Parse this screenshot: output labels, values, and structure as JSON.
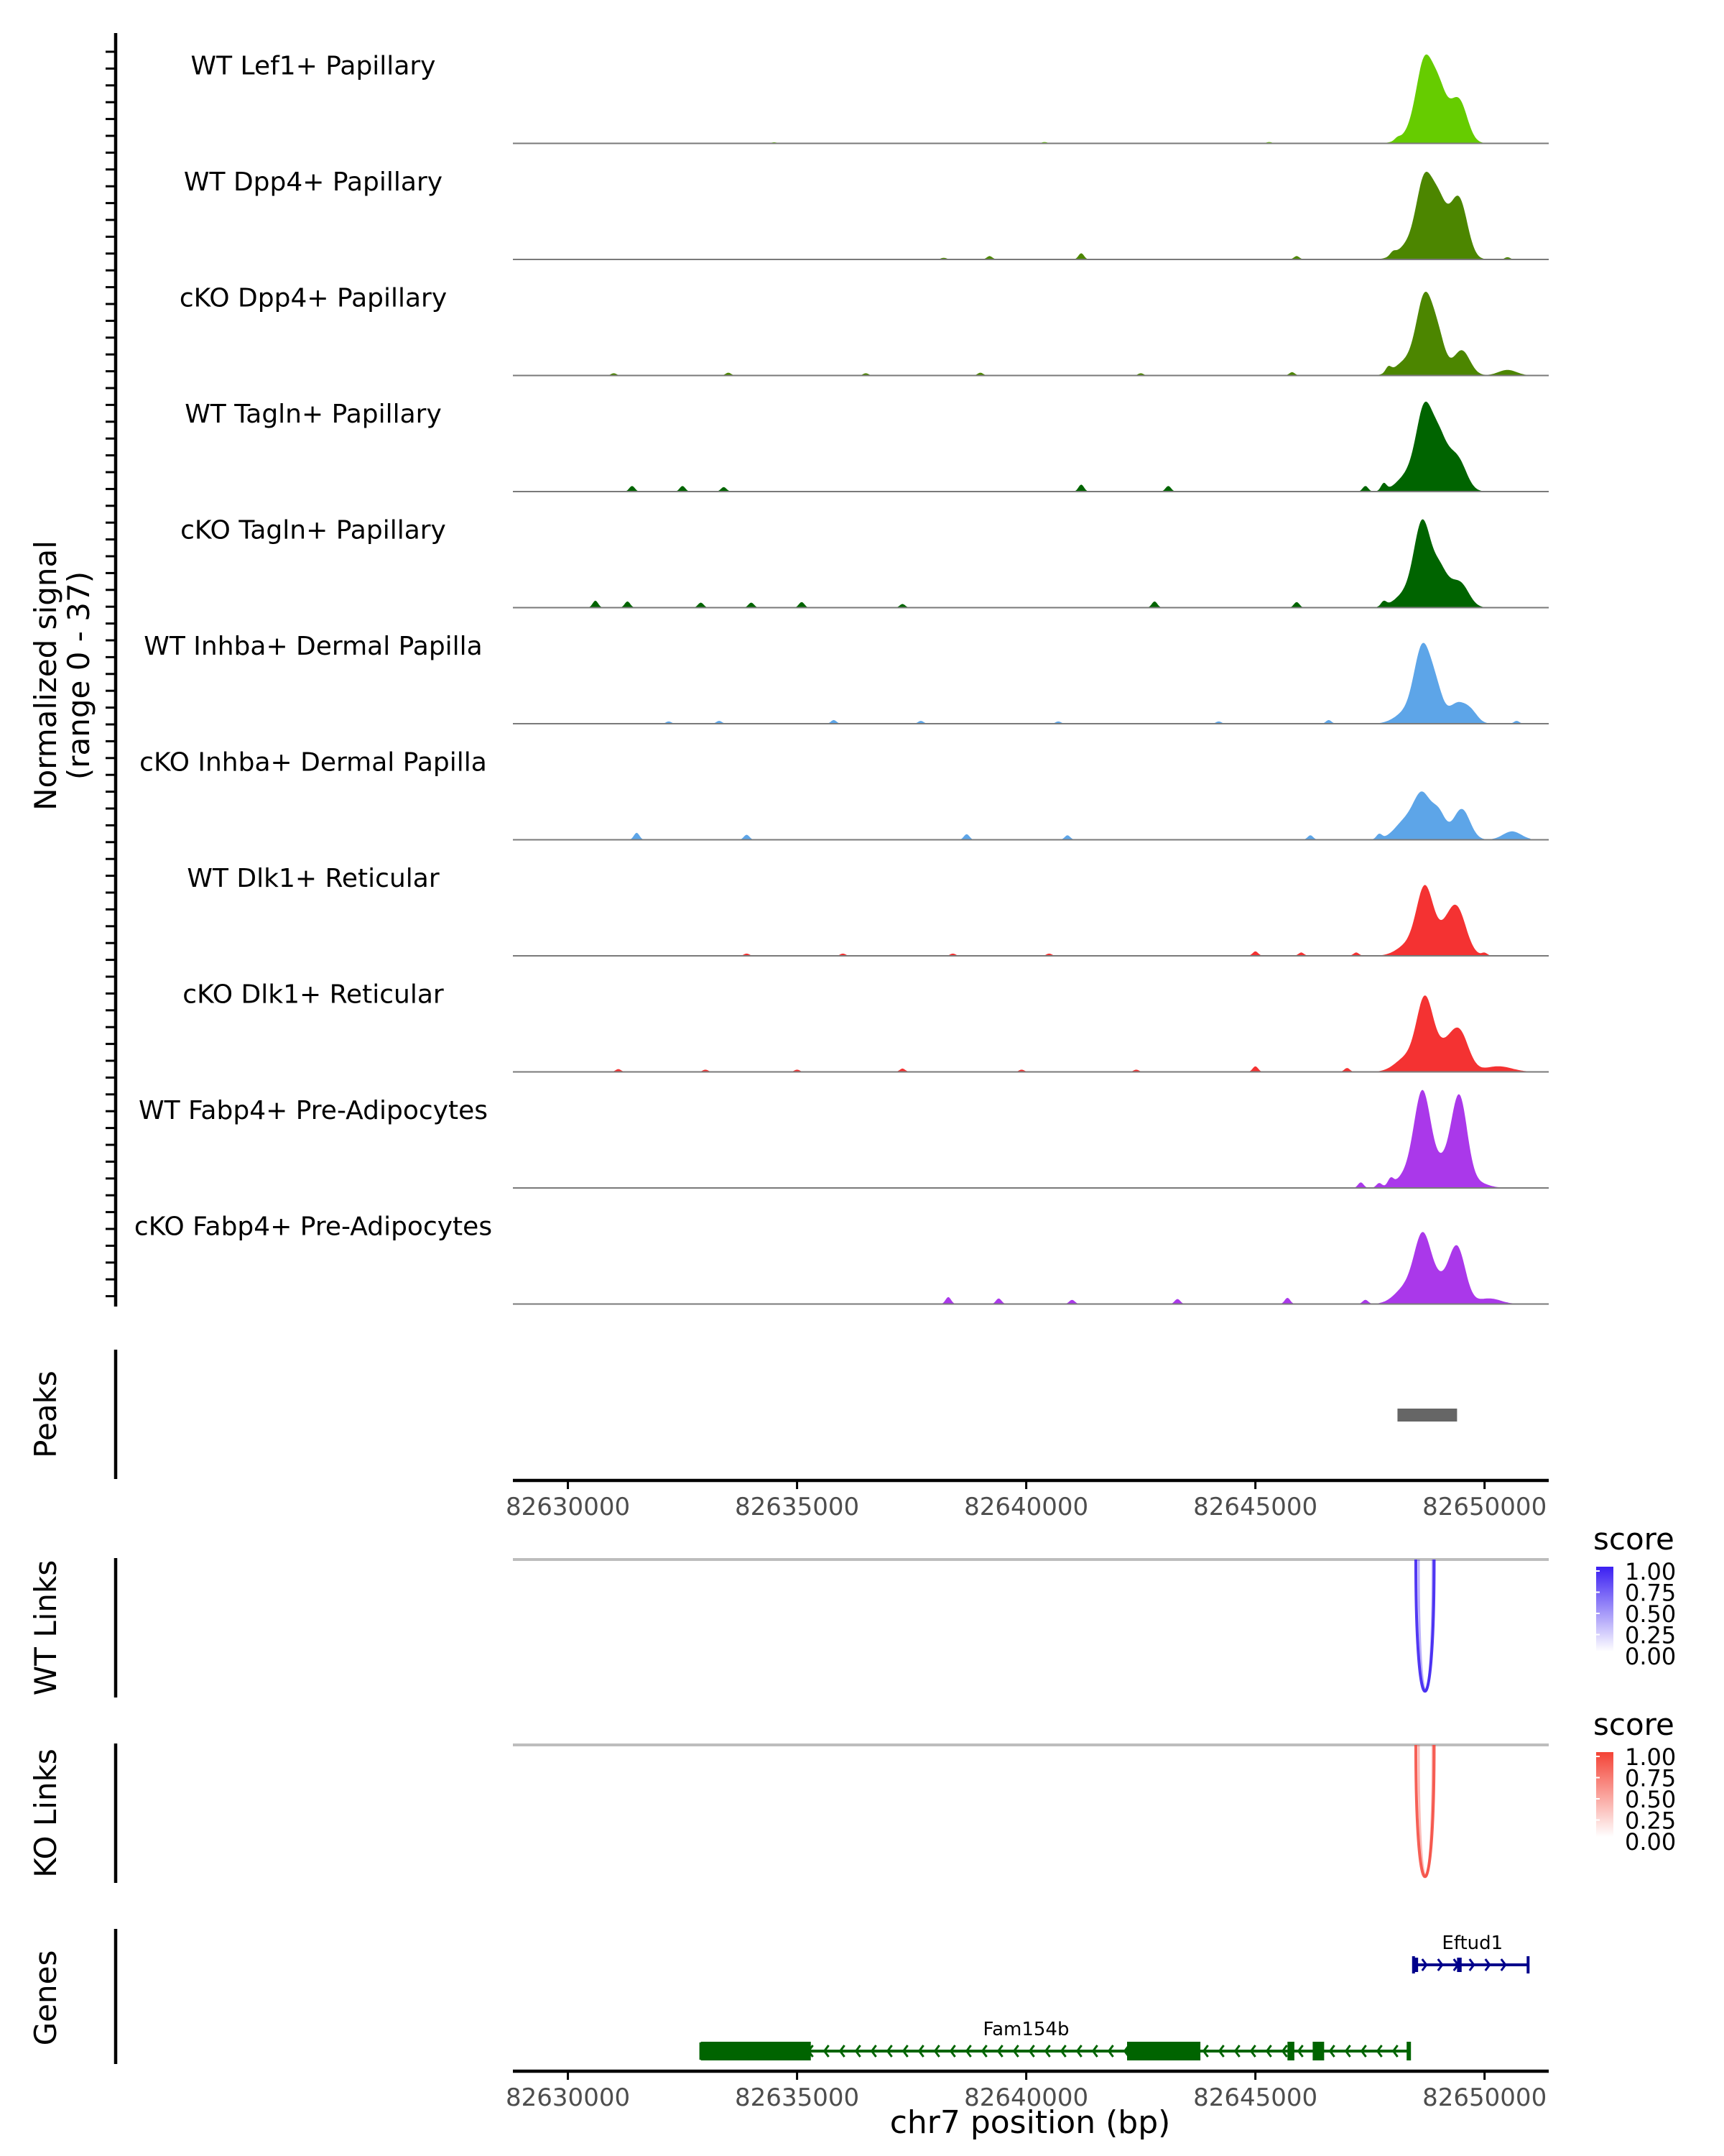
{
  "chart_data": {
    "type": "area",
    "subtype": "genome-coverage-track",
    "region": {
      "chrom": "chr7",
      "start": 82628800,
      "end": 82651400
    },
    "xlabel": "chr7 position (bp)",
    "x_ticks": [
      "82630000",
      "82635000",
      "82640000",
      "82645000",
      "82650000"
    ],
    "x_tick_values": [
      82630000,
      82635000,
      82640000,
      82645000,
      82650000
    ],
    "ylabel": "Normalized signal",
    "ylabel_range": "(range 0 - 37)",
    "ylim": [
      0,
      37
    ],
    "tracks": [
      {
        "label": "WT Lef1+ Papillary",
        "color": "#66cc00",
        "peaks": [
          [
            82648700,
            27,
            180
          ],
          [
            82649000,
            12,
            150
          ],
          [
            82649450,
            14,
            180
          ],
          [
            82648450,
            4,
            250
          ],
          [
            82649150,
            6,
            200
          ]
        ],
        "noise": [
          [
            82634500,
            0.4
          ],
          [
            82640400,
            0.5
          ],
          [
            82645300,
            0.5
          ],
          [
            82648100,
            0.8
          ]
        ]
      },
      {
        "label": "WT Dpp4+ Papillary",
        "color": "#4c8600",
        "peaks": [
          [
            82648700,
            27,
            180
          ],
          [
            82649000,
            12,
            150
          ],
          [
            82649450,
            20,
            180
          ],
          [
            82648350,
            5,
            250
          ],
          [
            82649150,
            7,
            200
          ]
        ],
        "noise": [
          [
            82638200,
            0.6
          ],
          [
            82639200,
            1.2
          ],
          [
            82641200,
            2.2
          ],
          [
            82645900,
            1.2
          ],
          [
            82648000,
            1.2
          ],
          [
            82650500,
            0.8
          ]
        ]
      },
      {
        "label": "cKO Dpp4+ Papillary",
        "color": "#4c8600",
        "peaks": [
          [
            82648700,
            27,
            180
          ],
          [
            82649000,
            11,
            150
          ],
          [
            82649500,
            9,
            180
          ],
          [
            82648300,
            5,
            250
          ],
          [
            82650500,
            2,
            200
          ]
        ],
        "noise": [
          [
            82631000,
            0.8
          ],
          [
            82633500,
            1.0
          ],
          [
            82636500,
            0.8
          ],
          [
            82639000,
            1.0
          ],
          [
            82642500,
            0.8
          ],
          [
            82645800,
            1.2
          ],
          [
            82647900,
            2.0
          ]
        ]
      },
      {
        "label": "WT Tagln+ Papillary",
        "color": "#006400",
        "peaks": [
          [
            82648700,
            28,
            180
          ],
          [
            82649000,
            12,
            150
          ],
          [
            82649450,
            9,
            180
          ],
          [
            82648350,
            6,
            250
          ],
          [
            82649200,
            8,
            180
          ]
        ],
        "noise": [
          [
            82631400,
            2.0
          ],
          [
            82632500,
            2.0
          ],
          [
            82633400,
            1.6
          ],
          [
            82641200,
            2.5
          ],
          [
            82643100,
            2.0
          ],
          [
            82647400,
            2.0
          ],
          [
            82647800,
            2.6
          ]
        ]
      },
      {
        "label": "cKO Tagln+ Papillary",
        "color": "#006400",
        "peaks": [
          [
            82648650,
            29,
            180
          ],
          [
            82649000,
            9,
            150
          ],
          [
            82649500,
            7,
            180
          ],
          [
            82648300,
            5,
            250
          ],
          [
            82649200,
            6,
            200
          ]
        ],
        "noise": [
          [
            82630600,
            2.5
          ],
          [
            82631300,
            2.2
          ],
          [
            82632900,
            1.8
          ],
          [
            82634000,
            1.8
          ],
          [
            82635100,
            2.0
          ],
          [
            82637300,
            1.3
          ],
          [
            82642800,
            2.2
          ],
          [
            82645900,
            2.0
          ],
          [
            82647800,
            1.8
          ]
        ]
      },
      {
        "label": "WT Inhba+ Dermal Papilla",
        "color": "#5da5e8",
        "peaks": [
          [
            82648650,
            26,
            180
          ],
          [
            82648950,
            10,
            150
          ],
          [
            82649400,
            7,
            180
          ],
          [
            82649700,
            4,
            150
          ],
          [
            82648300,
            4,
            250
          ]
        ],
        "noise": [
          [
            82632200,
            0.8
          ],
          [
            82633300,
            1.0
          ],
          [
            82635800,
            1.3
          ],
          [
            82637700,
            1.0
          ],
          [
            82640700,
            0.8
          ],
          [
            82644200,
            0.8
          ],
          [
            82646600,
            1.3
          ],
          [
            82650700,
            1.0
          ]
        ]
      },
      {
        "label": "cKO Inhba+ Dermal Papilla",
        "color": "#5da5e8",
        "peaks": [
          [
            82648650,
            14,
            180
          ],
          [
            82649000,
            9,
            150
          ],
          [
            82649500,
            11,
            180
          ],
          [
            82648300,
            7,
            250
          ],
          [
            82650600,
            3,
            200
          ]
        ],
        "noise": [
          [
            82631500,
            2.5
          ],
          [
            82633900,
            1.8
          ],
          [
            82638700,
            2.0
          ],
          [
            82640900,
            1.6
          ],
          [
            82646200,
            1.6
          ],
          [
            82647700,
            1.8
          ]
        ]
      },
      {
        "label": "WT Dlk1+ Reticular",
        "color": "#f43232",
        "peaks": [
          [
            82648700,
            23,
            180
          ],
          [
            82649400,
            16,
            200
          ],
          [
            82648350,
            4,
            250
          ],
          [
            82649100,
            6,
            200
          ]
        ],
        "noise": [
          [
            82633900,
            0.8
          ],
          [
            82636000,
            0.8
          ],
          [
            82638400,
            0.8
          ],
          [
            82640500,
            0.8
          ],
          [
            82645000,
            1.6
          ],
          [
            82646000,
            1.2
          ],
          [
            82647200,
            1.2
          ],
          [
            82650000,
            1.0
          ]
        ]
      },
      {
        "label": "cKO Dlk1+ Reticular",
        "color": "#f43232",
        "peaks": [
          [
            82648700,
            25,
            180
          ],
          [
            82649450,
            14,
            200
          ],
          [
            82648300,
            5,
            250
          ],
          [
            82649100,
            7,
            200
          ],
          [
            82650300,
            2,
            300
          ]
        ],
        "noise": [
          [
            82631100,
            1.0
          ],
          [
            82633000,
            0.8
          ],
          [
            82635000,
            0.8
          ],
          [
            82637300,
            1.2
          ],
          [
            82639900,
            0.8
          ],
          [
            82642400,
            0.8
          ],
          [
            82645000,
            2.0
          ],
          [
            82647000,
            1.4
          ]
        ]
      },
      {
        "label": "WT Fabp4+ Pre-Adipocytes",
        "color": "#aa38ea",
        "peaks": [
          [
            82648650,
            32,
            180
          ],
          [
            82649450,
            31,
            170
          ],
          [
            82648350,
            5,
            250
          ],
          [
            82649100,
            8,
            200
          ],
          [
            82649800,
            2,
            250
          ]
        ],
        "noise": [
          [
            82647300,
            2.0
          ],
          [
            82647700,
            1.6
          ],
          [
            82647950,
            2.4
          ]
        ]
      },
      {
        "label": "cKO Fabp4+ Pre-Adipocytes",
        "color": "#aa38ea",
        "peaks": [
          [
            82648650,
            22,
            180
          ],
          [
            82649400,
            20,
            180
          ],
          [
            82648300,
            6,
            250
          ],
          [
            82649000,
            7,
            200
          ],
          [
            82650100,
            2,
            250
          ]
        ],
        "noise": [
          [
            82638300,
            2.5
          ],
          [
            82639400,
            2.0
          ],
          [
            82641000,
            1.5
          ],
          [
            82643300,
            1.8
          ],
          [
            82645700,
            2.2
          ],
          [
            82647400,
            1.5
          ]
        ]
      }
    ],
    "peaks_track": {
      "label": "Peaks",
      "regions": [
        [
          82648100,
          82649400
        ]
      ],
      "color": "#666666"
    },
    "links": [
      {
        "label": "WT Links",
        "legend_title": "score",
        "color": "#3b1ff2",
        "low_color": "#ffffff",
        "arcs": [
          {
            "start": 82648500,
            "end": 82648900,
            "score": 0.75
          }
        ],
        "legend_values": [
          "1.00",
          "0.75",
          "0.50",
          "0.25",
          "0.00"
        ]
      },
      {
        "label": "KO Links",
        "legend_title": "score",
        "color": "#f44336",
        "low_color": "#ffffff",
        "arcs": [
          {
            "start": 82648500,
            "end": 82648900,
            "score": 0.65
          }
        ],
        "legend_values": [
          "1.00",
          "0.75",
          "0.50",
          "0.25",
          "0.00"
        ]
      }
    ],
    "genes_track": {
      "label": "Genes",
      "genes": [
        {
          "name": "Eftud1",
          "color": "#00008b",
          "strand": "+",
          "start": 82648450,
          "end": 82650950,
          "exons": [
            [
              82648450,
              82648550
            ],
            [
              82649400,
              82649500
            ]
          ]
        },
        {
          "name": "Fam154b",
          "color": "#006400",
          "strand": "-",
          "start": 82632900,
          "end": 82648350,
          "exons": [
            [
              82632900,
              82635300
            ],
            [
              82642200,
              82643800
            ],
            [
              82645700,
              82645850
            ],
            [
              82646250,
              82646500
            ],
            [
              82648300,
              82648350
            ]
          ]
        }
      ]
    }
  }
}
